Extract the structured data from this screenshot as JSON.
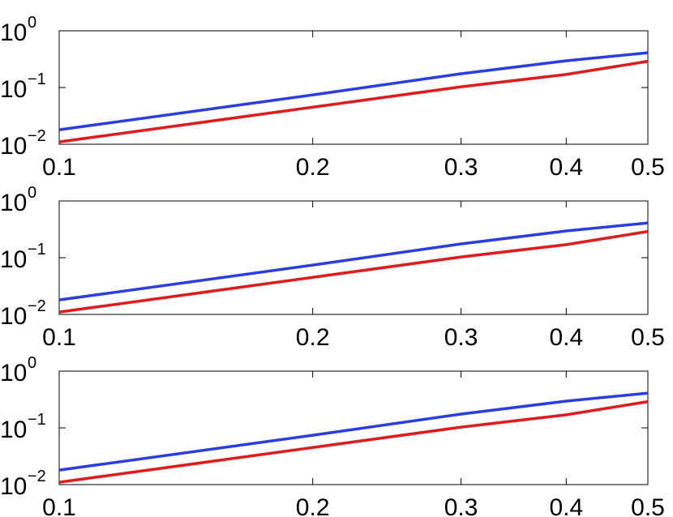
{
  "chart_data": [
    {
      "type": "line",
      "xscale": "log",
      "yscale": "log",
      "xlim": [
        0.1,
        0.5
      ],
      "ylim": [
        0.01,
        1
      ],
      "xticks": [
        0.1,
        0.2,
        0.3,
        0.4,
        0.5
      ],
      "yticks": [
        {
          "value": 0.01,
          "label": "10",
          "exponent": "−2"
        },
        {
          "value": 0.1,
          "label": "10",
          "exponent": "−1"
        },
        {
          "value": 1,
          "label": "10",
          "exponent": "0"
        }
      ],
      "x": [
        0.1,
        0.2,
        0.3,
        0.4,
        0.5
      ],
      "series": [
        {
          "color": "#2a3de0",
          "values": [
            0.018,
            0.074,
            0.175,
            0.296,
            0.41
          ]
        },
        {
          "color": "#e01b1b",
          "values": [
            0.011,
            0.045,
            0.103,
            0.17,
            0.29
          ]
        }
      ]
    },
    {
      "type": "line",
      "xscale": "log",
      "yscale": "log",
      "xlim": [
        0.1,
        0.5
      ],
      "ylim": [
        0.01,
        1
      ],
      "xticks": [
        0.1,
        0.2,
        0.3,
        0.4,
        0.5
      ],
      "yticks": [
        {
          "value": 0.01,
          "label": "10",
          "exponent": "−2"
        },
        {
          "value": 0.1,
          "label": "10",
          "exponent": "−1"
        },
        {
          "value": 1,
          "label": "10",
          "exponent": "0"
        }
      ],
      "x": [
        0.1,
        0.2,
        0.3,
        0.4,
        0.5
      ],
      "series": [
        {
          "color": "#2a3de0",
          "values": [
            0.018,
            0.074,
            0.175,
            0.296,
            0.41
          ]
        },
        {
          "color": "#e01b1b",
          "values": [
            0.011,
            0.045,
            0.103,
            0.17,
            0.29
          ]
        }
      ]
    },
    {
      "type": "line",
      "xscale": "log",
      "yscale": "log",
      "xlim": [
        0.1,
        0.5
      ],
      "ylim": [
        0.01,
        1
      ],
      "xticks": [
        0.1,
        0.2,
        0.3,
        0.4,
        0.5
      ],
      "yticks": [
        {
          "value": 0.01,
          "label": "10",
          "exponent": "−2"
        },
        {
          "value": 0.1,
          "label": "10",
          "exponent": "−1"
        },
        {
          "value": 1,
          "label": "10",
          "exponent": "0"
        }
      ],
      "x": [
        0.1,
        0.2,
        0.3,
        0.4,
        0.5
      ],
      "series": [
        {
          "color": "#2a3de0",
          "values": [
            0.018,
            0.074,
            0.175,
            0.296,
            0.41
          ]
        },
        {
          "color": "#e01b1b",
          "values": [
            0.011,
            0.045,
            0.103,
            0.17,
            0.29
          ]
        }
      ]
    }
  ]
}
